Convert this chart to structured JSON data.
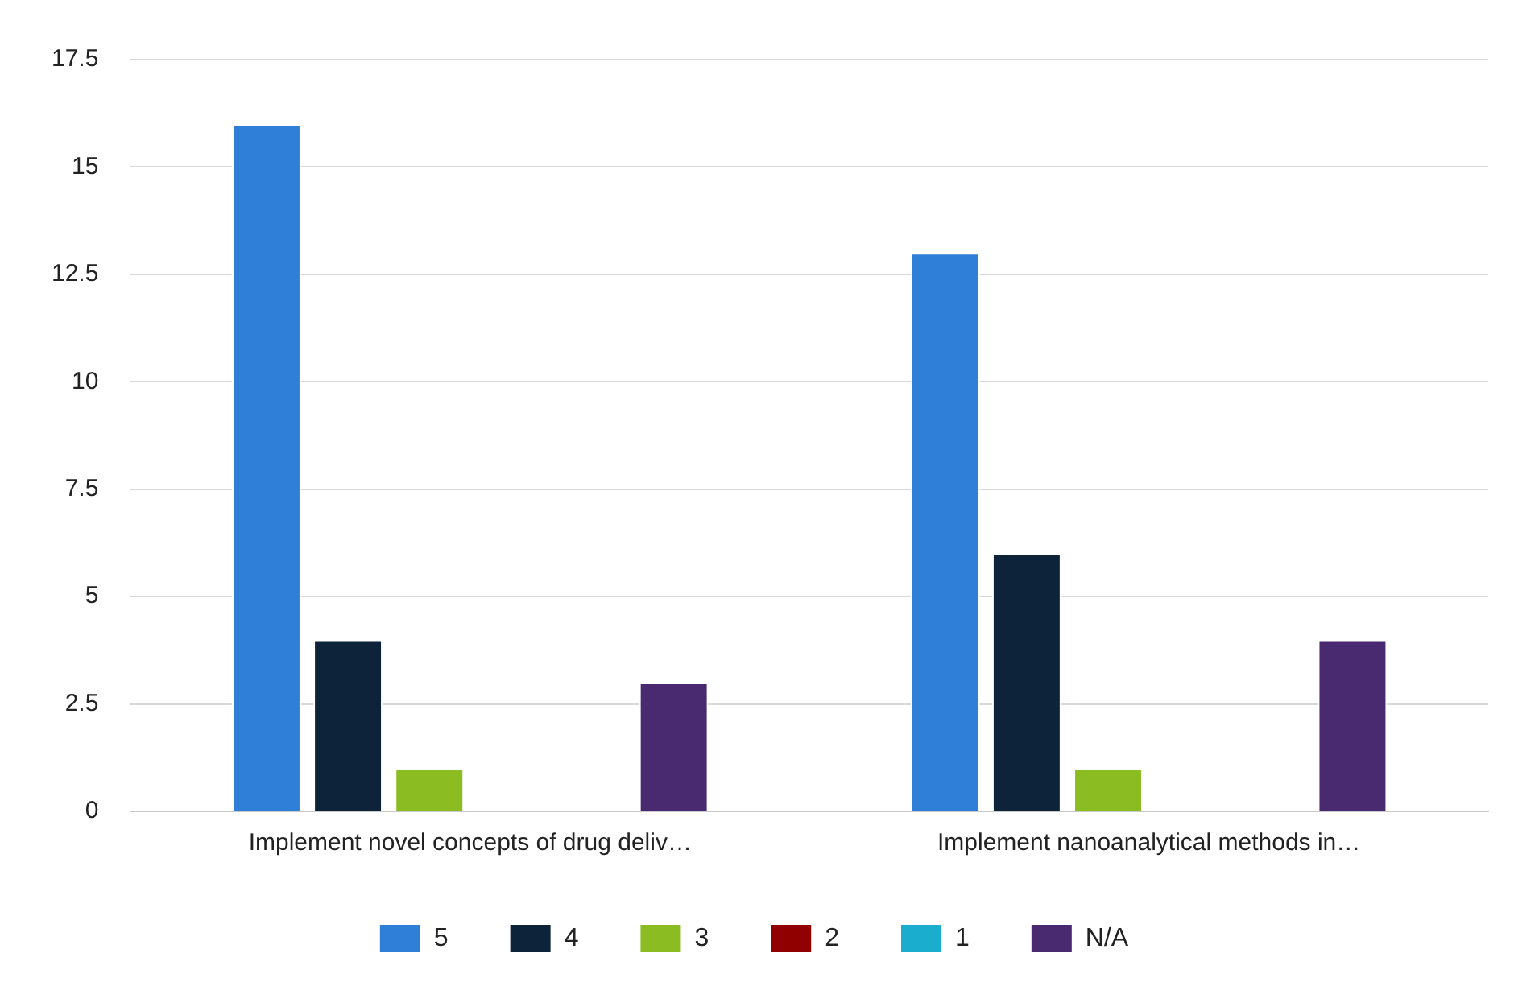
{
  "chart_data": {
    "type": "bar",
    "categories": [
      "Implement novel concepts of drug deliv…",
      "Implement nanoanalytical methods in…"
    ],
    "series": [
      {
        "name": "5",
        "color": "#2f7ed8",
        "values": [
          16,
          13
        ]
      },
      {
        "name": "4",
        "color": "#0d233a",
        "values": [
          4,
          6
        ]
      },
      {
        "name": "3",
        "color": "#8bbc21",
        "values": [
          1,
          1
        ]
      },
      {
        "name": "2",
        "color": "#910000",
        "values": [
          0,
          0
        ]
      },
      {
        "name": "1",
        "color": "#1aadce",
        "values": [
          0,
          0
        ]
      },
      {
        "name": "N/A",
        "color": "#492970",
        "values": [
          3,
          4
        ]
      }
    ],
    "ylim": [
      0,
      17.5
    ],
    "yticks": [
      0,
      2.5,
      5,
      7.5,
      10,
      12.5,
      15,
      17.5
    ],
    "grid": "y",
    "legend": "bottom"
  }
}
